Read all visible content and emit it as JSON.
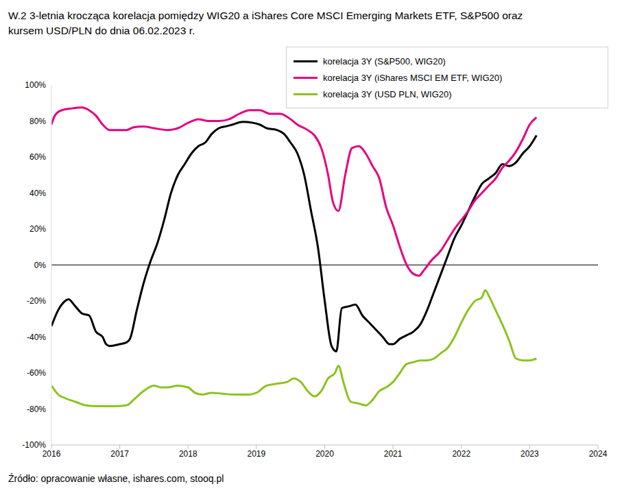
{
  "chart_data": {
    "type": "line",
    "title": "W.2 3-letnia krocząca korelacja pomiędzy WIG20 a iShares Core MSCI Emerging Markets ETF, S&P500 oraz kursem USD/PLN do dnia 06.02.2023 r.",
    "source": "Źródło: opracowanie własne, ishares.com, stooq.pl",
    "xlim": [
      2016,
      2024
    ],
    "xticks": [
      2016,
      2017,
      2018,
      2019,
      2020,
      2021,
      2022,
      2023,
      2024
    ],
    "ylim": [
      -100,
      100
    ],
    "yticks": [
      {
        "value": -100,
        "label": "-100%"
      },
      {
        "value": -80,
        "label": "-80%"
      },
      {
        "value": -60,
        "label": "-60%"
      },
      {
        "value": -40,
        "label": "-40%"
      },
      {
        "value": -20,
        "label": "-20%"
      },
      {
        "value": 0,
        "label": "0%"
      },
      {
        "value": 20,
        "label": "20%"
      },
      {
        "value": 40,
        "label": "40%"
      },
      {
        "value": 60,
        "label": "60%"
      },
      {
        "value": 80,
        "label": "80%"
      },
      {
        "value": 100,
        "label": "100%"
      }
    ],
    "grid": false,
    "legend": "upper right",
    "series": [
      {
        "name": "korelacja 3Y (S&P500, WIG20)",
        "color": "#000000",
        "x": [
          2016.0,
          2016.1,
          2016.2,
          2016.25,
          2016.35,
          2016.45,
          2016.55,
          2016.65,
          2016.75,
          2016.8,
          2016.85,
          2017.0,
          2017.1,
          2017.15,
          2017.25,
          2017.35,
          2017.45,
          2017.55,
          2017.65,
          2017.75,
          2017.85,
          2017.95,
          2018.05,
          2018.15,
          2018.25,
          2018.35,
          2018.45,
          2018.55,
          2018.65,
          2018.8,
          2018.95,
          2019.05,
          2019.15,
          2019.3,
          2019.4,
          2019.5,
          2019.6,
          2019.7,
          2019.8,
          2019.9,
          2020.0,
          2020.1,
          2020.17,
          2020.25,
          2020.35,
          2020.45,
          2020.55,
          2020.65,
          2020.75,
          2020.85,
          2020.95,
          2021.0,
          2021.1,
          2021.2,
          2021.3,
          2021.4,
          2021.5,
          2021.6,
          2021.7,
          2021.8,
          2021.9,
          2022.0,
          2022.1,
          2022.2,
          2022.3,
          2022.4,
          2022.5,
          2022.6,
          2022.7,
          2022.8,
          2022.9,
          2023.0,
          2023.1
        ],
        "values": [
          -34,
          -25,
          -20,
          -19,
          -23,
          -27,
          -28,
          -37,
          -40,
          -44,
          -45,
          -44,
          -43,
          -41,
          -25,
          -10,
          2,
          12,
          25,
          40,
          50,
          56,
          62,
          66,
          68,
          73,
          76,
          77,
          78,
          79.5,
          79,
          78,
          76,
          75,
          73,
          68,
          62,
          50,
          30,
          10,
          -20,
          -45,
          -48,
          -24,
          -23,
          -22,
          -28,
          -32,
          -36,
          -40,
          -44,
          -44,
          -41,
          -39,
          -37,
          -33,
          -25,
          -15,
          -5,
          5,
          15,
          22,
          30,
          38,
          45,
          48,
          51,
          56,
          55,
          57,
          62,
          66,
          72
        ]
      },
      {
        "name": "korelacja 3Y (iShares MSCI EM ETF, WIG20)",
        "color": "#e6007e",
        "x": [
          2016.0,
          2016.05,
          2016.15,
          2016.3,
          2016.45,
          2016.55,
          2016.65,
          2016.75,
          2016.85,
          2017.0,
          2017.1,
          2017.2,
          2017.35,
          2017.5,
          2017.7,
          2017.85,
          2018.0,
          2018.15,
          2018.3,
          2018.45,
          2018.6,
          2018.75,
          2018.9,
          2019.05,
          2019.2,
          2019.35,
          2019.5,
          2019.6,
          2019.75,
          2019.85,
          2019.95,
          2020.05,
          2020.12,
          2020.2,
          2020.3,
          2020.4,
          2020.5,
          2020.6,
          2020.7,
          2020.8,
          2020.9,
          2021.0,
          2021.1,
          2021.2,
          2021.3,
          2021.38,
          2021.45,
          2021.55,
          2021.7,
          2021.8,
          2021.9,
          2022.0,
          2022.1,
          2022.2,
          2022.3,
          2022.4,
          2022.5,
          2022.6,
          2022.7,
          2022.8,
          2022.9,
          2023.0,
          2023.1
        ],
        "values": [
          78,
          83,
          86,
          87,
          87.5,
          86,
          83,
          78,
          75,
          75,
          75,
          76.5,
          77,
          76,
          75,
          76,
          79,
          81,
          80,
          80,
          81,
          84,
          86,
          86,
          84,
          84,
          81,
          78,
          75,
          72,
          65,
          50,
          35,
          30,
          50,
          65,
          66,
          62,
          55,
          48,
          32,
          22,
          10,
          0,
          -5,
          -6,
          -3,
          2,
          8,
          14,
          20,
          25,
          30,
          36,
          40,
          44,
          48,
          54,
          58,
          63,
          70,
          78,
          82
        ]
      },
      {
        "name": "korelacja 3Y (USD PLN, WIG20)",
        "color": "#8dc21f",
        "x": [
          2016.0,
          2016.1,
          2016.2,
          2016.35,
          2016.5,
          2016.7,
          2016.9,
          2017.1,
          2017.2,
          2017.35,
          2017.5,
          2017.6,
          2017.7,
          2017.85,
          2018.0,
          2018.1,
          2018.2,
          2018.35,
          2018.5,
          2018.7,
          2018.9,
          2019.0,
          2019.15,
          2019.3,
          2019.45,
          2019.55,
          2019.65,
          2019.75,
          2019.85,
          2019.95,
          2020.05,
          2020.15,
          2020.2,
          2020.28,
          2020.38,
          2020.5,
          2020.6,
          2020.7,
          2020.8,
          2020.9,
          2021.0,
          2021.1,
          2021.2,
          2021.3,
          2021.4,
          2021.5,
          2021.6,
          2021.7,
          2021.8,
          2021.9,
          2022.0,
          2022.1,
          2022.2,
          2022.3,
          2022.35,
          2022.4,
          2022.5,
          2022.6,
          2022.7,
          2022.8,
          2022.9,
          2023.0,
          2023.1
        ],
        "values": [
          -67,
          -72,
          -74,
          -76,
          -78,
          -78.5,
          -78.5,
          -78,
          -75,
          -70,
          -67,
          -68,
          -68,
          -67,
          -68,
          -71,
          -72,
          -71,
          -71.5,
          -72,
          -72,
          -71,
          -67,
          -66,
          -65,
          -63,
          -65,
          -70,
          -73,
          -70,
          -63,
          -60,
          -56,
          -66,
          -76,
          -77,
          -78,
          -75,
          -70,
          -68,
          -65,
          -60,
          -55,
          -54,
          -53,
          -53,
          -52,
          -49,
          -46,
          -40,
          -32,
          -25,
          -20,
          -18,
          -14,
          -17,
          -25,
          -33,
          -42,
          -52,
          -53,
          -53,
          -52
        ]
      }
    ]
  }
}
